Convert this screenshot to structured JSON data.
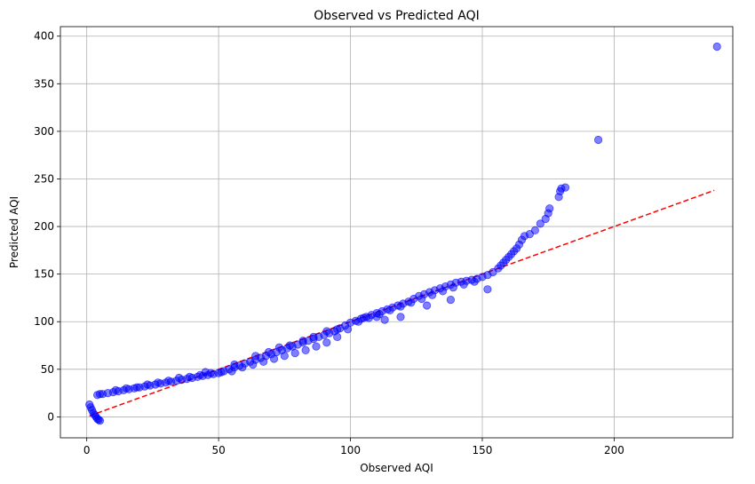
{
  "chart_data": {
    "type": "scatter",
    "title": "Observed vs Predicted AQI",
    "xlabel": "Observed AQI",
    "ylabel": "Predicted AQI",
    "xlim": [
      -10,
      245
    ],
    "ylim": [
      -22,
      410
    ],
    "xticks": [
      0,
      50,
      100,
      150,
      200
    ],
    "yticks": [
      0,
      50,
      100,
      150,
      200,
      250,
      300,
      350,
      400
    ],
    "grid": true,
    "colors": {
      "points": "#0000ff",
      "reference_line": "#ff0000",
      "grid": "#b0b0b0"
    },
    "reference_line": {
      "style": "dashed",
      "x": [
        1,
        238
      ],
      "y": [
        1,
        238
      ]
    },
    "points": [
      [
        1,
        13
      ],
      [
        1.5,
        10
      ],
      [
        2,
        7
      ],
      [
        2.5,
        4
      ],
      [
        3,
        2
      ],
      [
        3.5,
        0
      ],
      [
        4,
        -2
      ],
      [
        4.5,
        -3
      ],
      [
        5,
        -4
      ],
      [
        4,
        23
      ],
      [
        5,
        24
      ],
      [
        6,
        24
      ],
      [
        8,
        25
      ],
      [
        10,
        26
      ],
      [
        12,
        27
      ],
      [
        14,
        28
      ],
      [
        16,
        29
      ],
      [
        18,
        30
      ],
      [
        20,
        31
      ],
      [
        22,
        32
      ],
      [
        24,
        33
      ],
      [
        26,
        34
      ],
      [
        28,
        35
      ],
      [
        30,
        36
      ],
      [
        32,
        37
      ],
      [
        34,
        38
      ],
      [
        36,
        39
      ],
      [
        38,
        40
      ],
      [
        40,
        41
      ],
      [
        42,
        42
      ],
      [
        44,
        43
      ],
      [
        46,
        44
      ],
      [
        48,
        45
      ],
      [
        50,
        46
      ],
      [
        52,
        48
      ],
      [
        54,
        50
      ],
      [
        56,
        52
      ],
      [
        58,
        54
      ],
      [
        60,
        56
      ],
      [
        62,
        58
      ],
      [
        64,
        60
      ],
      [
        66,
        62
      ],
      [
        68,
        64
      ],
      [
        70,
        66
      ],
      [
        72,
        68
      ],
      [
        74,
        70
      ],
      [
        76,
        72
      ],
      [
        78,
        74
      ],
      [
        80,
        76
      ],
      [
        82,
        78
      ],
      [
        84,
        80
      ],
      [
        86,
        82
      ],
      [
        88,
        84
      ],
      [
        90,
        86
      ],
      [
        92,
        88
      ],
      [
        94,
        90
      ],
      [
        96,
        93
      ],
      [
        98,
        96
      ],
      [
        100,
        99
      ],
      [
        102,
        101
      ],
      [
        104,
        103
      ],
      [
        106,
        105
      ],
      [
        108,
        107
      ],
      [
        110,
        109
      ],
      [
        112,
        111
      ],
      [
        114,
        113
      ],
      [
        116,
        115
      ],
      [
        118,
        117
      ],
      [
        120,
        119
      ],
      [
        122,
        121
      ],
      [
        124,
        124
      ],
      [
        126,
        127
      ],
      [
        128,
        129
      ],
      [
        130,
        131
      ],
      [
        132,
        133
      ],
      [
        134,
        135
      ],
      [
        136,
        137
      ],
      [
        138,
        139
      ],
      [
        140,
        141
      ],
      [
        142,
        142
      ],
      [
        144,
        143
      ],
      [
        146,
        144
      ],
      [
        148,
        145
      ],
      [
        150,
        147
      ],
      [
        152,
        149
      ],
      [
        154,
        152
      ],
      [
        156,
        156
      ],
      [
        157,
        159
      ],
      [
        158,
        162
      ],
      [
        159,
        165
      ],
      [
        160,
        168
      ],
      [
        161,
        171
      ],
      [
        162,
        174
      ],
      [
        163,
        177
      ],
      [
        164,
        181
      ],
      [
        165,
        186
      ],
      [
        166,
        190
      ],
      [
        168,
        192
      ],
      [
        170,
        196
      ],
      [
        172,
        203
      ],
      [
        174,
        208
      ],
      [
        175,
        214
      ],
      [
        175.5,
        219
      ],
      [
        179,
        231
      ],
      [
        179.5,
        237
      ],
      [
        180,
        240
      ],
      [
        181.5,
        241
      ],
      [
        11,
        28
      ],
      [
        15,
        30
      ],
      [
        19,
        31
      ],
      [
        23,
        34
      ],
      [
        27,
        36
      ],
      [
        31,
        38
      ],
      [
        35,
        41
      ],
      [
        39,
        42
      ],
      [
        43,
        44
      ],
      [
        47,
        46
      ],
      [
        51,
        47
      ],
      [
        55,
        48
      ],
      [
        59,
        52
      ],
      [
        63,
        55
      ],
      [
        67,
        58
      ],
      [
        71,
        61
      ],
      [
        75,
        64
      ],
      [
        79,
        67
      ],
      [
        83,
        70
      ],
      [
        87,
        74
      ],
      [
        91,
        78
      ],
      [
        95,
        84
      ],
      [
        99,
        92
      ],
      [
        103,
        100
      ],
      [
        107,
        104
      ],
      [
        111,
        108
      ],
      [
        115,
        112
      ],
      [
        119,
        116
      ],
      [
        123,
        120
      ],
      [
        127,
        124
      ],
      [
        131,
        128
      ],
      [
        135,
        132
      ],
      [
        139,
        136
      ],
      [
        143,
        139
      ],
      [
        147,
        142
      ],
      [
        45,
        47
      ],
      [
        56,
        55
      ],
      [
        64,
        64
      ],
      [
        69,
        68
      ],
      [
        73,
        73
      ],
      [
        77,
        75
      ],
      [
        82,
        80
      ],
      [
        86,
        84
      ],
      [
        91,
        90
      ],
      [
        95,
        92
      ],
      [
        105,
        104
      ],
      [
        110,
        105
      ],
      [
        113,
        102
      ],
      [
        119,
        105
      ],
      [
        129,
        117
      ],
      [
        138,
        123
      ],
      [
        152,
        134
      ]
    ],
    "outliers": [
      [
        194,
        291
      ],
      [
        239,
        389
      ]
    ]
  }
}
